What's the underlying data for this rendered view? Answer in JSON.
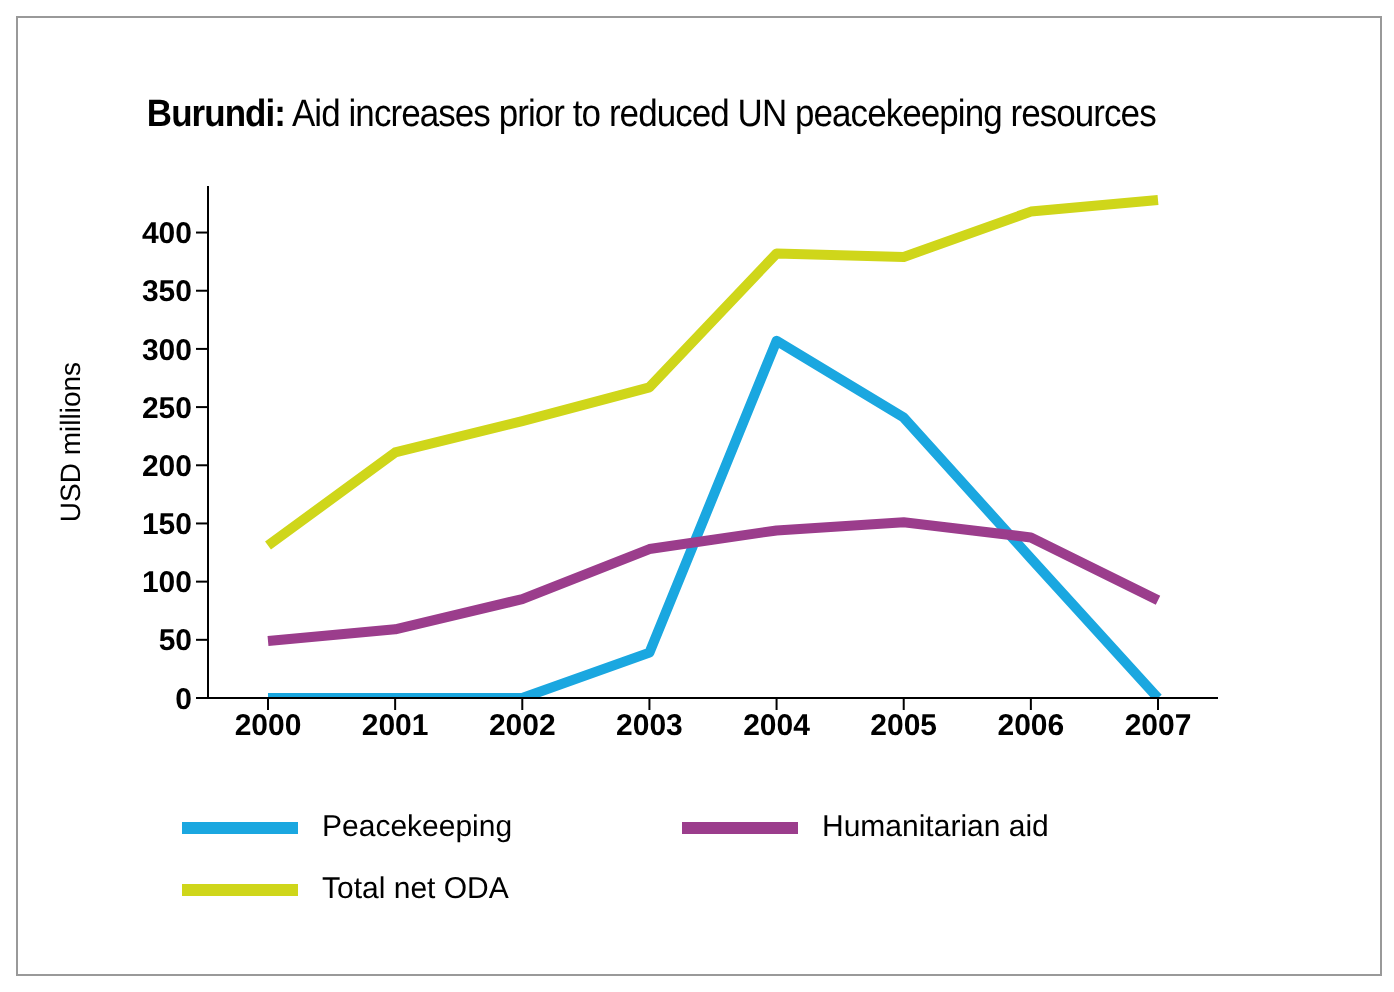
{
  "chart_data": {
    "type": "line",
    "title": "Burundi: Aid increases prior to reduced UN peacekeeping resources",
    "ylabel": "USD millions",
    "categories": [
      "2000",
      "2001",
      "2002",
      "2003",
      "2004",
      "2005",
      "2006",
      "2007"
    ],
    "series": [
      {
        "name": "Peacekeeping",
        "color": "#1aa7e0",
        "values": [
          0,
          0,
          0,
          39,
          307,
          241,
          120,
          0
        ]
      },
      {
        "name": "Humanitarian aid",
        "color": "#9b3d8c",
        "values": [
          49,
          59,
          85,
          128,
          144,
          151,
          138,
          84
        ]
      },
      {
        "name": "Total net ODA",
        "color": "#cfd61a",
        "values": [
          131,
          211,
          238,
          267,
          382,
          379,
          418,
          428
        ]
      }
    ],
    "ylim": [
      0,
      440
    ],
    "yticks": [
      0,
      50,
      100,
      150,
      200,
      250,
      300,
      350,
      400
    ],
    "grid": false,
    "legend": "bottom",
    "marker": "none",
    "line_style": "solid"
  }
}
